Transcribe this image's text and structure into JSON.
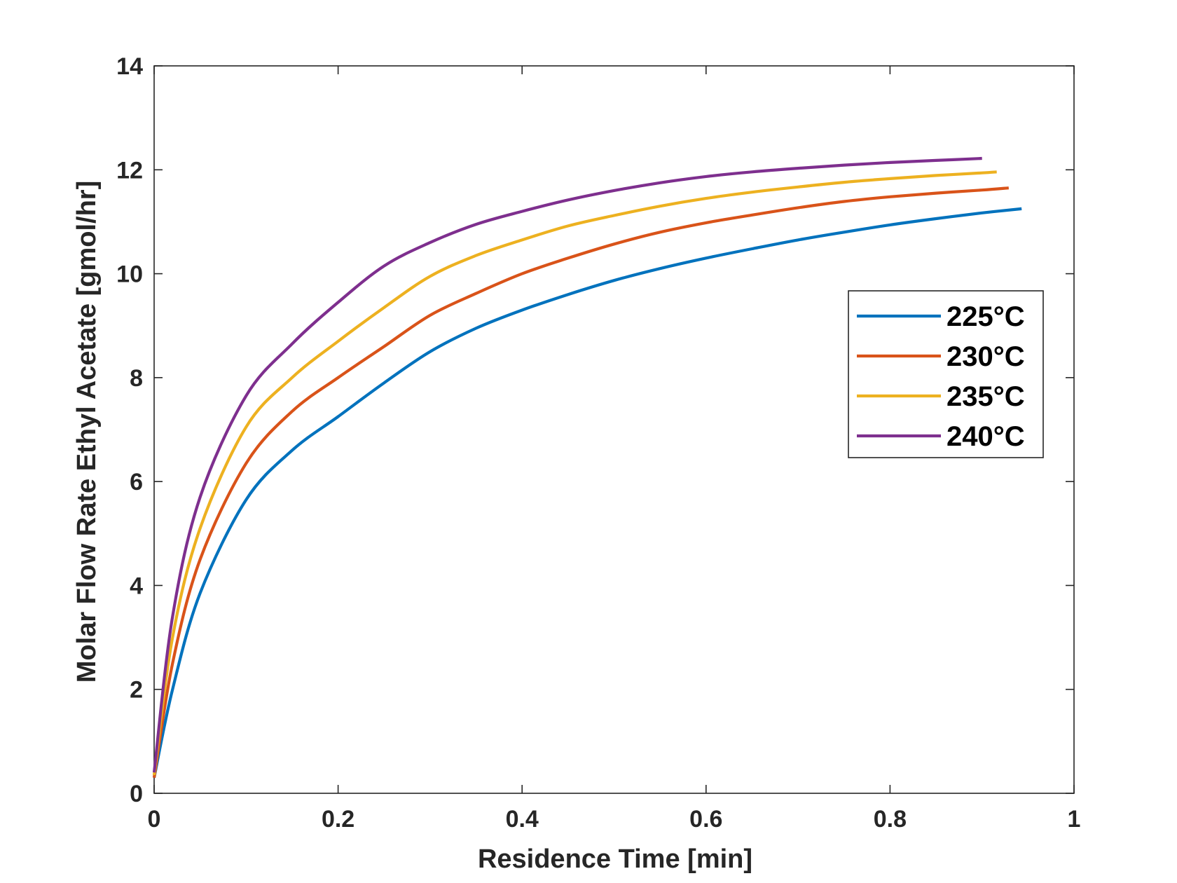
{
  "chart_data": {
    "type": "line",
    "title": "",
    "xlabel": "Residence Time [min]",
    "ylabel": "Molar Flow Rate Ethyl Acetate [gmol/hr]",
    "xlim": [
      0,
      1
    ],
    "ylim": [
      0,
      14
    ],
    "xticks": [
      "0",
      "0.2",
      "0.4",
      "0.6",
      "0.8",
      "1"
    ],
    "xtick_values": [
      0,
      0.2,
      0.4,
      0.6,
      0.8,
      1
    ],
    "yticks": [
      "0",
      "2",
      "4",
      "6",
      "8",
      "10",
      "12",
      "14"
    ],
    "ytick_values": [
      0,
      2,
      4,
      6,
      8,
      10,
      12,
      14
    ],
    "grid": false,
    "legend_position": "right",
    "series": [
      {
        "name": "225°C",
        "color": "#0072BD",
        "x": [
          0,
          0.02,
          0.05,
          0.1,
          0.15,
          0.2,
          0.25,
          0.3,
          0.35,
          0.4,
          0.45,
          0.5,
          0.55,
          0.6,
          0.65,
          0.7,
          0.75,
          0.8,
          0.85,
          0.9,
          0.943
        ],
        "y": [
          0.3,
          2.0,
          3.85,
          5.65,
          6.6,
          7.25,
          7.9,
          8.5,
          8.95,
          9.3,
          9.6,
          9.87,
          10.1,
          10.3,
          10.48,
          10.65,
          10.8,
          10.94,
          11.06,
          11.17,
          11.25
        ]
      },
      {
        "name": "230°C",
        "color": "#D95319",
        "x": [
          0,
          0.02,
          0.05,
          0.1,
          0.15,
          0.2,
          0.25,
          0.3,
          0.35,
          0.4,
          0.45,
          0.5,
          0.55,
          0.6,
          0.65,
          0.7,
          0.75,
          0.8,
          0.85,
          0.9,
          0.929
        ],
        "y": [
          0.3,
          2.5,
          4.5,
          6.35,
          7.35,
          8.0,
          8.6,
          9.2,
          9.62,
          10.0,
          10.3,
          10.57,
          10.8,
          10.98,
          11.13,
          11.27,
          11.39,
          11.48,
          11.55,
          11.61,
          11.65
        ]
      },
      {
        "name": "235°C",
        "color": "#EDB120",
        "x": [
          0,
          0.02,
          0.05,
          0.1,
          0.15,
          0.2,
          0.25,
          0.3,
          0.35,
          0.4,
          0.45,
          0.5,
          0.55,
          0.6,
          0.65,
          0.7,
          0.75,
          0.8,
          0.85,
          0.9,
          0.916
        ],
        "y": [
          0.35,
          3.0,
          5.1,
          7.05,
          8.0,
          8.7,
          9.35,
          9.95,
          10.35,
          10.65,
          10.92,
          11.12,
          11.3,
          11.45,
          11.57,
          11.67,
          11.76,
          11.83,
          11.89,
          11.94,
          11.96
        ]
      },
      {
        "name": "240°C",
        "color": "#7E2F8E",
        "x": [
          0,
          0.02,
          0.05,
          0.1,
          0.15,
          0.2,
          0.25,
          0.3,
          0.35,
          0.4,
          0.45,
          0.5,
          0.55,
          0.6,
          0.65,
          0.7,
          0.75,
          0.8,
          0.85,
          0.9
        ],
        "y": [
          0.4,
          3.4,
          5.7,
          7.65,
          8.65,
          9.45,
          10.15,
          10.6,
          10.95,
          11.2,
          11.42,
          11.6,
          11.75,
          11.87,
          11.96,
          12.03,
          12.09,
          12.14,
          12.18,
          12.22
        ]
      }
    ]
  }
}
